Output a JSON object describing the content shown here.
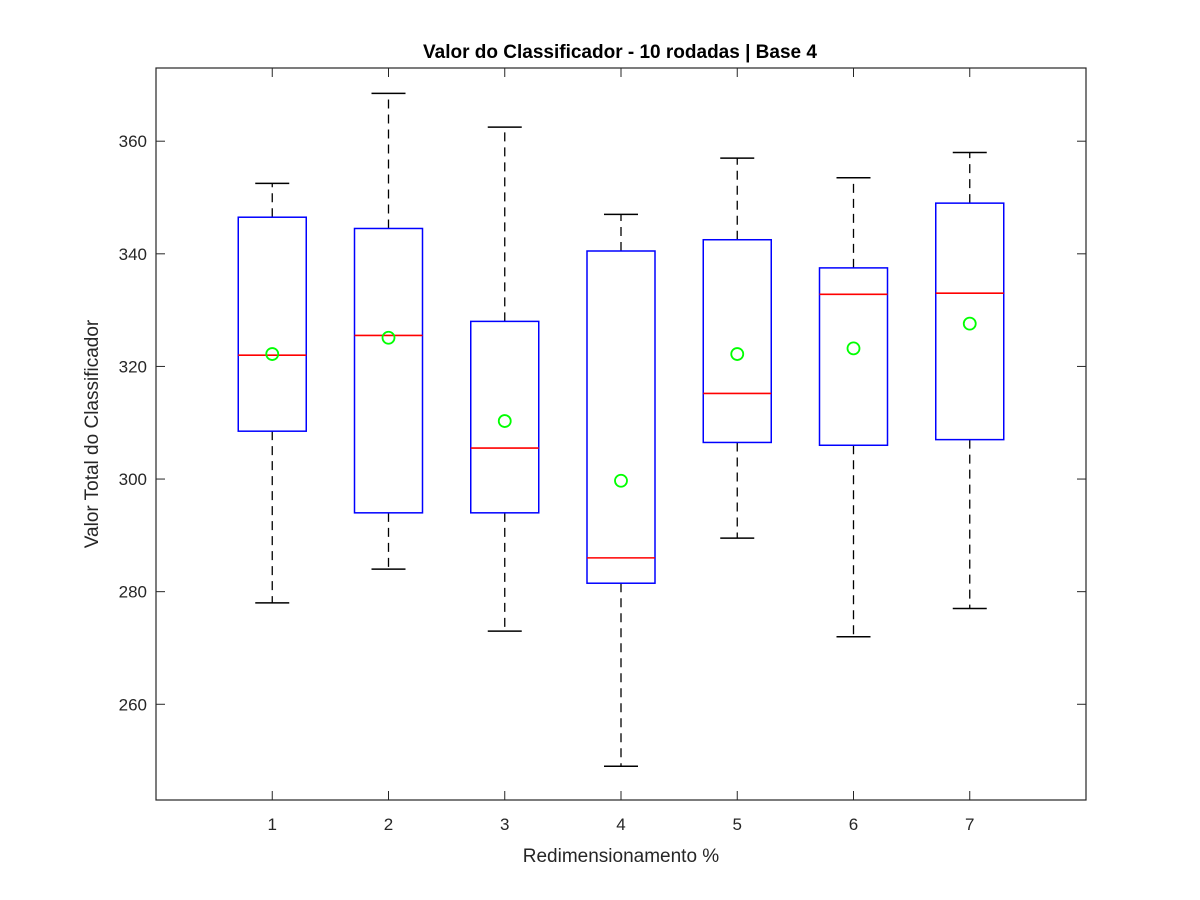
{
  "chart_data": {
    "type": "box",
    "title": "Valor do Classificador - 10 rodadas | Base 4",
    "xlabel": "Redimensionamento %",
    "ylabel": "Valor Total do Classificador",
    "ylim": [
      243,
      373
    ],
    "yticks": [
      260,
      280,
      300,
      320,
      340,
      360
    ],
    "categories": [
      "1",
      "2",
      "3",
      "4",
      "5",
      "6",
      "7"
    ],
    "boxes": [
      {
        "category": "1",
        "whisker_low": 278,
        "q1": 308.5,
        "median": 322,
        "q3": 346.5,
        "whisker_high": 352.5,
        "mean": 322.2
      },
      {
        "category": "2",
        "whisker_low": 284,
        "q1": 294,
        "median": 325.5,
        "q3": 344.5,
        "whisker_high": 368.5,
        "mean": 325.1
      },
      {
        "category": "3",
        "whisker_low": 273,
        "q1": 294,
        "median": 305.5,
        "q3": 328,
        "whisker_high": 362.5,
        "mean": 310.3
      },
      {
        "category": "4",
        "whisker_low": 249,
        "q1": 281.5,
        "median": 286,
        "q3": 340.5,
        "whisker_high": 347,
        "mean": 299.7
      },
      {
        "category": "5",
        "whisker_low": 289.5,
        "q1": 306.5,
        "median": 315.2,
        "q3": 342.5,
        "whisker_high": 357,
        "mean": 322.2
      },
      {
        "category": "6",
        "whisker_low": 272,
        "q1": 306,
        "median": 332.8,
        "q3": 337.5,
        "whisker_high": 353.5,
        "mean": 323.2
      },
      {
        "category": "7",
        "whisker_low": 277,
        "q1": 307,
        "median": 333,
        "q3": 349,
        "whisker_high": 358,
        "mean": 327.6
      }
    ],
    "grid": false,
    "colors": {
      "box": "#0000ff",
      "median": "#ff0000",
      "whisker": "#000000",
      "mean_marker": "#00ff00",
      "axes": "#262626"
    }
  }
}
